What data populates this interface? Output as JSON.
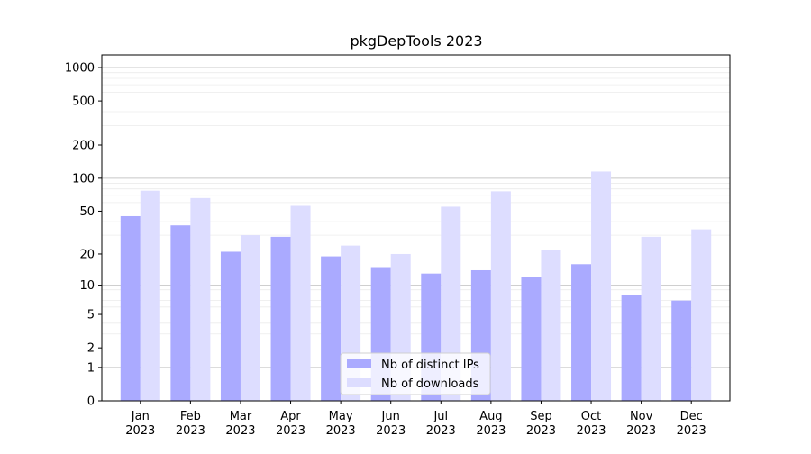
{
  "chart_data": {
    "type": "bar",
    "title": "pkgDepTools 2023",
    "xlabel": "",
    "ylabel": "",
    "scale": "log1p",
    "ylim": [
      0,
      1300
    ],
    "yticks": [
      0,
      1,
      2,
      5,
      10,
      20,
      50,
      100,
      200,
      500,
      1000
    ],
    "categories": [
      [
        "Jan",
        "2023"
      ],
      [
        "Feb",
        "2023"
      ],
      [
        "Mar",
        "2023"
      ],
      [
        "Apr",
        "2023"
      ],
      [
        "May",
        "2023"
      ],
      [
        "Jun",
        "2023"
      ],
      [
        "Jul",
        "2023"
      ],
      [
        "Aug",
        "2023"
      ],
      [
        "Sep",
        "2023"
      ],
      [
        "Oct",
        "2023"
      ],
      [
        "Nov",
        "2023"
      ],
      [
        "Dec",
        "2023"
      ]
    ],
    "series": [
      {
        "name": "Nb of distinct IPs",
        "color": "#aaaaff",
        "values": [
          45,
          37,
          21,
          29,
          19,
          15,
          13,
          14,
          12,
          16,
          8,
          7
        ]
      },
      {
        "name": "Nb of downloads",
        "color": "#ddddff",
        "values": [
          77,
          66,
          30,
          56,
          24,
          20,
          55,
          76,
          22,
          115,
          29,
          34
        ]
      }
    ],
    "legend_position": "lower-center",
    "grid": true
  }
}
